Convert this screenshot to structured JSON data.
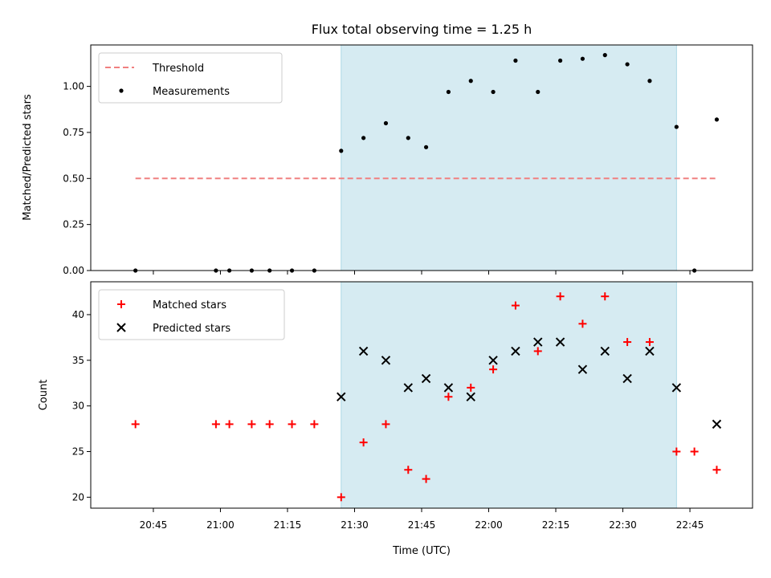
{
  "chart_data": [
    {
      "type": "scatter",
      "title": "Flux total observing time = 1.25 h",
      "xlabel": "",
      "ylabel": "Matched/Predicted stars",
      "ylim": [
        0,
        1.225
      ],
      "yticks": [
        "0.00",
        "0.25",
        "0.50",
        "0.75",
        "1.00"
      ],
      "highlight_span": {
        "start": "21:27",
        "end": "22:42",
        "color": "#add8e6"
      },
      "legend": {
        "position": "top-left",
        "entries": [
          "Threshold",
          "Measurements"
        ]
      },
      "threshold": {
        "name": "Threshold",
        "value": 0.5,
        "x_start": "20:41",
        "x_end": "22:51",
        "color": "#f08080"
      },
      "series": [
        {
          "name": "Measurements",
          "color": "#000000",
          "x": [
            "20:41",
            "20:59",
            "21:02",
            "21:07",
            "21:11",
            "21:16",
            "21:21",
            "21:27",
            "21:32",
            "21:37",
            "21:42",
            "21:46",
            "21:51",
            "21:56",
            "22:01",
            "22:06",
            "22:11",
            "22:16",
            "22:21",
            "22:26",
            "22:31",
            "22:36",
            "22:42",
            "22:46",
            "22:51"
          ],
          "y": [
            0,
            0,
            0,
            0,
            0,
            0,
            0,
            0.65,
            0.72,
            0.8,
            0.72,
            0.67,
            0.97,
            1.03,
            0.97,
            1.14,
            0.97,
            1.14,
            1.15,
            1.17,
            1.12,
            1.03,
            0.78,
            0,
            0.82
          ]
        }
      ]
    },
    {
      "type": "scatter",
      "title": "",
      "xlabel": "Time (UTC)",
      "ylabel": "Count",
      "ylim": [
        18.8,
        43.6
      ],
      "yticks": [
        "20",
        "25",
        "30",
        "35",
        "40"
      ],
      "xticks": [
        "20:45",
        "21:00",
        "21:15",
        "21:30",
        "21:45",
        "22:00",
        "22:15",
        "22:30",
        "22:45"
      ],
      "highlight_span": {
        "start": "21:27",
        "end": "22:42",
        "color": "#add8e6"
      },
      "legend": {
        "position": "top-left",
        "entries": [
          "Matched stars",
          "Predicted stars"
        ]
      },
      "series": [
        {
          "name": "Matched stars",
          "marker": "plus",
          "color": "#ff0000",
          "x": [
            "20:41",
            "20:59",
            "21:02",
            "21:07",
            "21:11",
            "21:16",
            "21:21",
            "21:27",
            "21:32",
            "21:37",
            "21:42",
            "21:46",
            "21:51",
            "21:56",
            "22:01",
            "22:06",
            "22:11",
            "22:16",
            "22:21",
            "22:26",
            "22:31",
            "22:36",
            "22:42",
            "22:46",
            "22:51"
          ],
          "y": [
            28,
            28,
            28,
            28,
            28,
            28,
            28,
            20,
            26,
            28,
            23,
            22,
            31,
            32,
            34,
            41,
            36,
            42,
            39,
            42,
            37,
            37,
            25,
            25,
            23
          ]
        },
        {
          "name": "Predicted stars",
          "marker": "x",
          "color": "#000000",
          "x": [
            "21:27",
            "21:32",
            "21:37",
            "21:42",
            "21:46",
            "21:51",
            "21:56",
            "22:01",
            "22:06",
            "22:11",
            "22:16",
            "22:21",
            "22:26",
            "22:31",
            "22:36",
            "22:42",
            "22:51"
          ],
          "y": [
            31,
            36,
            35,
            32,
            33,
            32,
            31,
            35,
            36,
            37,
            37,
            34,
            36,
            33,
            36,
            32,
            28
          ]
        }
      ]
    }
  ]
}
